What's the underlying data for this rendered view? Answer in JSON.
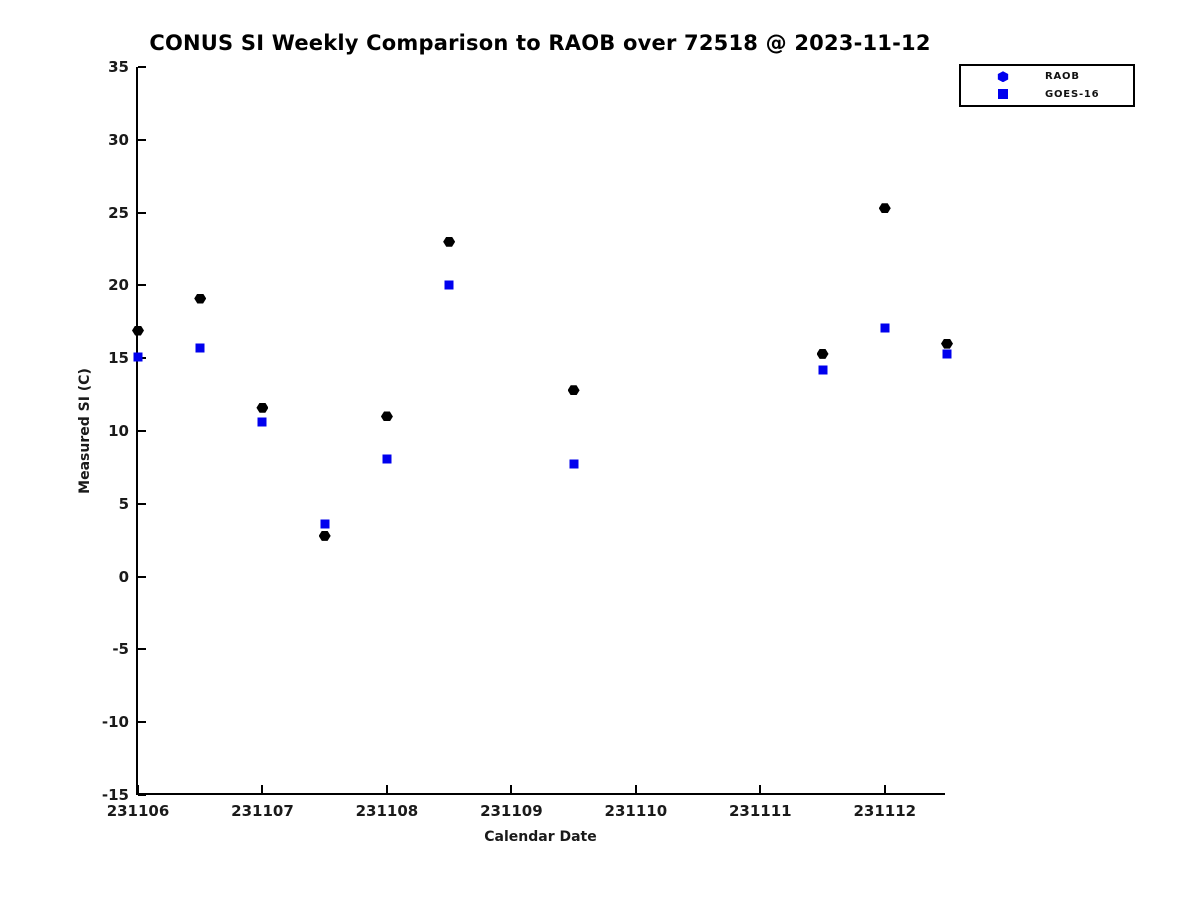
{
  "chart_data": {
    "type": "scatter",
    "title": "CONUS SI Weekly Comparison to RAOB over 72518 @ 2023-11-12",
    "xlabel": "Calendar Date",
    "ylabel": "Measured SI (C)",
    "xlim": [
      231106,
      231112.5
    ],
    "ylim": [
      -15,
      35
    ],
    "xticks": [
      231106,
      231107,
      231108,
      231109,
      231110,
      231111,
      231112
    ],
    "yticks": [
      -15,
      -10,
      -5,
      0,
      5,
      10,
      15,
      20,
      25,
      30,
      35
    ],
    "grid": false,
    "legend_position": "upper right",
    "series": [
      {
        "name": "RAOB",
        "marker": "hexagon",
        "plot_color": "#000000",
        "legend_color": "#0000ee",
        "x": [
          231106.0,
          231106.5,
          231107.0,
          231107.5,
          231108.0,
          231108.5,
          231109.5,
          231111.5,
          231112.0,
          231112.5
        ],
        "y": [
          16.9,
          19.1,
          11.6,
          2.8,
          11.0,
          23.0,
          12.8,
          15.3,
          25.3,
          16.0
        ]
      },
      {
        "name": "GOES-16",
        "marker": "square",
        "plot_color": "#0000ee",
        "legend_color": "#0000ee",
        "x": [
          231106.0,
          231106.5,
          231107.0,
          231107.5,
          231108.0,
          231108.5,
          231109.5,
          231111.5,
          231112.0,
          231112.5
        ],
        "y": [
          15.1,
          15.7,
          10.6,
          3.6,
          8.1,
          20.0,
          7.7,
          14.2,
          17.1,
          15.3
        ]
      }
    ]
  }
}
